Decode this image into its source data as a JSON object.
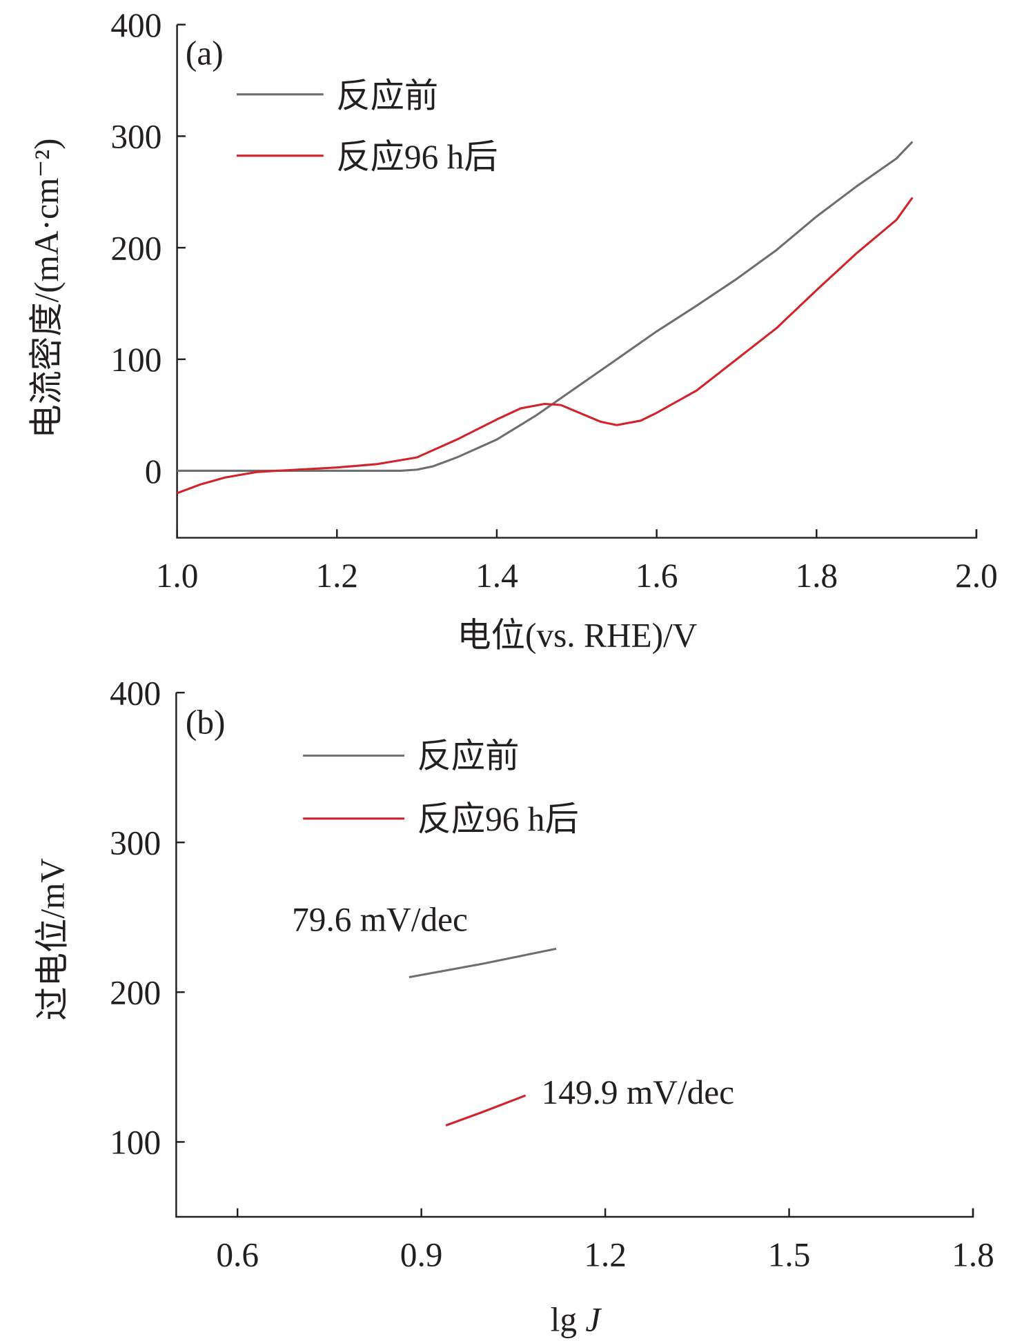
{
  "colors": {
    "before": "#6d6e71",
    "after": "#d2232a",
    "axis": "#231f20"
  },
  "chart_data": [
    {
      "type": "line",
      "panel_label": "(a)",
      "xlabel": "电位(vs. RHE)/V",
      "ylabel": "电流密度/(mA·cm⁻²)",
      "xlim": [
        1.0,
        2.0
      ],
      "ylim": [
        -60,
        400
      ],
      "xticks": [
        "1.0",
        "1.2",
        "1.4",
        "1.6",
        "1.8",
        "2.0"
      ],
      "yticks": [
        "0",
        "100",
        "200",
        "300",
        "400"
      ],
      "legend_position": "top-left",
      "series": [
        {
          "name": "反应前",
          "color_key": "before",
          "x": [
            1.0,
            1.1,
            1.2,
            1.28,
            1.3,
            1.32,
            1.35,
            1.4,
            1.45,
            1.5,
            1.55,
            1.6,
            1.65,
            1.7,
            1.75,
            1.8,
            1.85,
            1.9,
            1.92
          ],
          "y": [
            0,
            0,
            0,
            0,
            1,
            4,
            12,
            28,
            50,
            75,
            100,
            125,
            148,
            172,
            198,
            228,
            255,
            280,
            295
          ]
        },
        {
          "name": "反应96 h后",
          "color_key": "after",
          "x": [
            1.0,
            1.03,
            1.06,
            1.1,
            1.15,
            1.2,
            1.25,
            1.3,
            1.35,
            1.4,
            1.43,
            1.46,
            1.48,
            1.5,
            1.53,
            1.55,
            1.58,
            1.6,
            1.65,
            1.7,
            1.75,
            1.8,
            1.85,
            1.9,
            1.92
          ],
          "y": [
            -20,
            -12,
            -6,
            -1,
            1,
            3,
            6,
            12,
            28,
            46,
            56,
            60,
            59,
            53,
            44,
            41,
            45,
            52,
            72,
            100,
            128,
            162,
            195,
            225,
            245
          ]
        }
      ]
    },
    {
      "type": "line",
      "panel_label": "(b)",
      "xlabel": "lg J",
      "ylabel": "过电位/mV",
      "xlim": [
        0.5,
        1.8
      ],
      "ylim": [
        50,
        400
      ],
      "xticks": [
        "0.6",
        "0.9",
        "1.2",
        "1.5",
        "1.8"
      ],
      "yticks": [
        "100",
        "200",
        "300",
        "400"
      ],
      "legend_position": "top-left",
      "series": [
        {
          "name": "反应前",
          "color_key": "before",
          "x": [
            0.88,
            1.0,
            1.12
          ],
          "y": [
            210,
            219,
            229
          ]
        },
        {
          "name": "反应96 h后",
          "color_key": "after",
          "x": [
            0.94,
            1.0,
            1.07
          ],
          "y": [
            111,
            120,
            131
          ]
        }
      ],
      "annotations": [
        "79.6 mV/dec",
        "149.9 mV/dec"
      ]
    }
  ]
}
